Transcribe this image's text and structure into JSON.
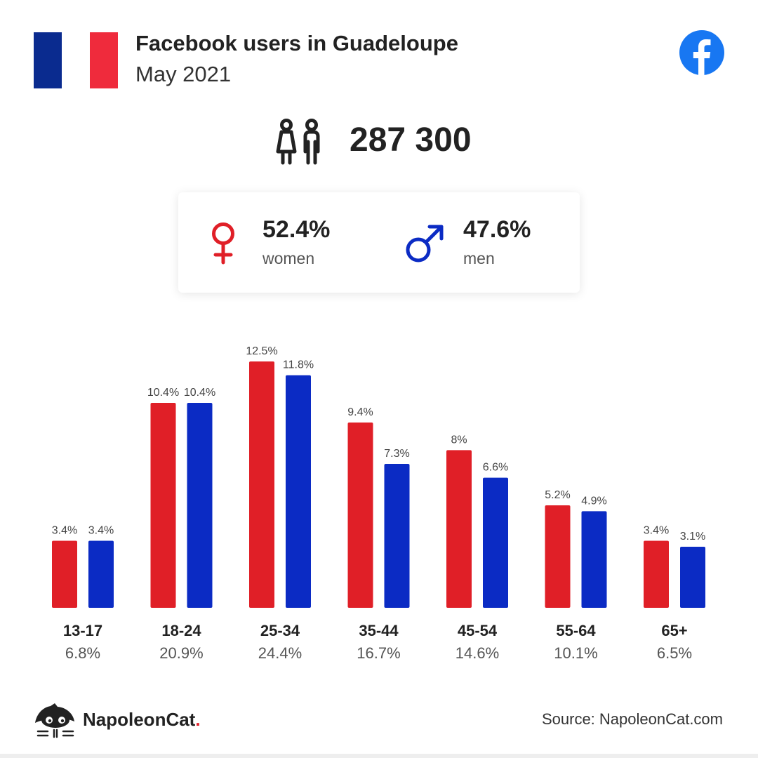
{
  "header": {
    "title": "Facebook users in Guadeloupe",
    "subtitle": "May 2021"
  },
  "colors": {
    "women": "#e01f27",
    "men": "#0b2bc4",
    "flag_blue": "#0a2b8f",
    "flag_red": "#ef2b3c",
    "facebook": "#1877f2"
  },
  "icons": {
    "flag": "france-flag",
    "brand": "facebook-logo-icon",
    "users": "users-icon",
    "women": "female-symbol-icon",
    "men": "male-symbol-icon",
    "footer": "napoleoncat-logo-icon"
  },
  "users": {
    "count": "287 300"
  },
  "gender": {
    "women": {
      "pct": "52.4%",
      "label": "women"
    },
    "men": {
      "pct": "47.6%",
      "label": "men"
    }
  },
  "chart_data": {
    "type": "bar",
    "categories": [
      "13-17",
      "18-24",
      "25-34",
      "35-44",
      "45-54",
      "55-64",
      "65+"
    ],
    "totals": [
      "6.8%",
      "20.9%",
      "24.4%",
      "16.7%",
      "14.6%",
      "10.1%",
      "6.5%"
    ],
    "series": [
      {
        "key": "women",
        "values": [
          3.4,
          10.4,
          12.5,
          9.4,
          8,
          5.2,
          3.4
        ],
        "labels": [
          "3.4%",
          "10.4%",
          "12.5%",
          "9.4%",
          "8%",
          "5.2%",
          "3.4%"
        ]
      },
      {
        "key": "men",
        "values": [
          3.4,
          10.4,
          11.8,
          7.3,
          6.6,
          4.9,
          3.1
        ],
        "labels": [
          "3.4%",
          "10.4%",
          "11.8%",
          "7.3%",
          "6.6%",
          "4.9%",
          "3.1%"
        ]
      }
    ],
    "ylim": [
      0,
      12.5
    ],
    "grid": false
  },
  "footer": {
    "brand_name": "NapoleonCat",
    "brand_dot": ".",
    "source": "Source: NapoleonCat.com"
  }
}
